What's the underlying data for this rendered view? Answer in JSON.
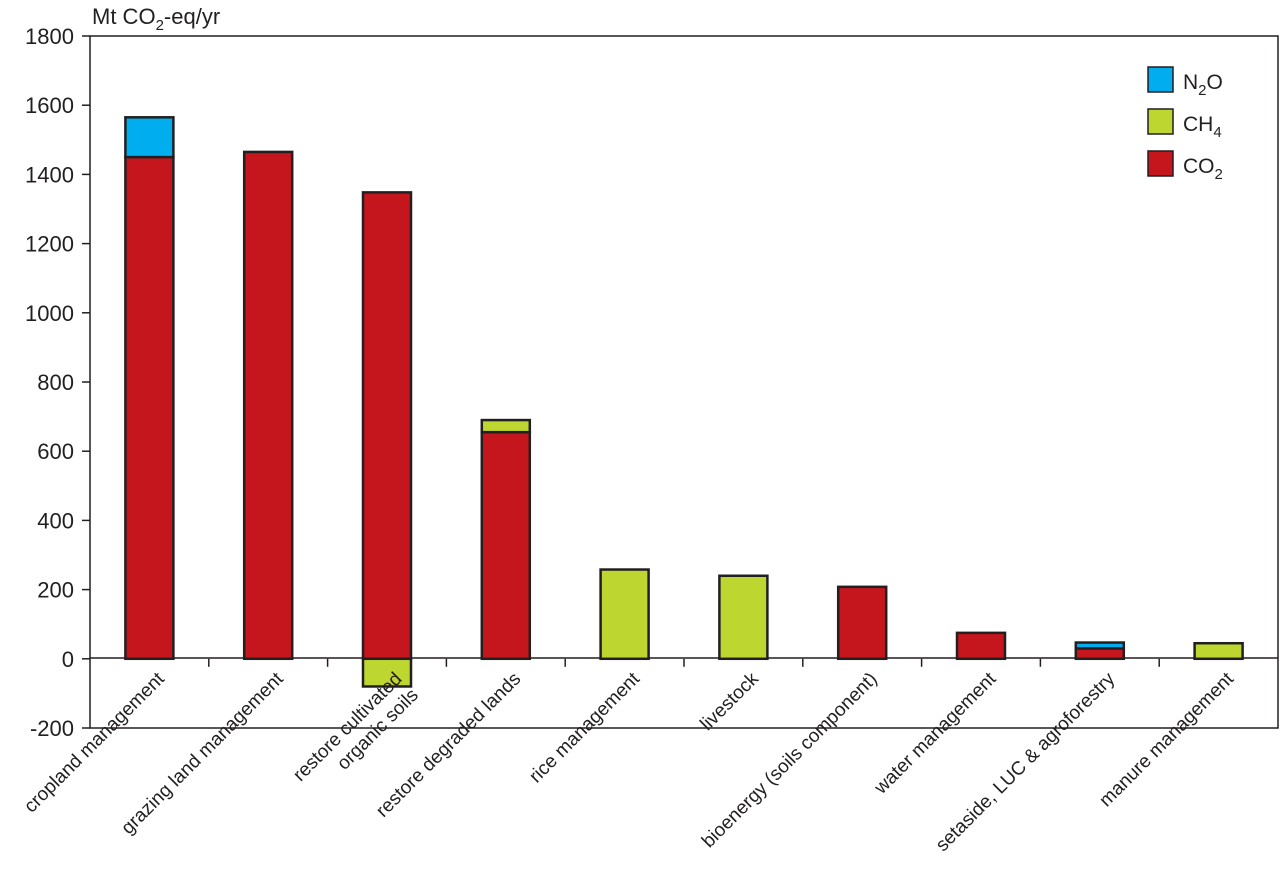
{
  "chart_data": {
    "type": "bar",
    "stacked": true,
    "ylabel": {
      "base": "Mt CO",
      "sub": "2",
      "rest": "-eq/yr"
    },
    "ylim": [
      -200,
      1800
    ],
    "yticks": [
      "-200",
      "0",
      "200",
      "400",
      "600",
      "800",
      "1000",
      "1200",
      "1400",
      "1600",
      "1800"
    ],
    "grid": false,
    "legend_position": "top-right",
    "categories": [
      [
        "cropland management"
      ],
      [
        "grazing land management"
      ],
      [
        "restore cultivated",
        "organic soils"
      ],
      [
        "restore degraded lands"
      ],
      [
        "rice management"
      ],
      [
        "livestock"
      ],
      [
        "bioenergy (soils component)"
      ],
      [
        "water management"
      ],
      [
        "setaside, LUC & agroforestry"
      ],
      [
        "manure management"
      ]
    ],
    "series": [
      {
        "name": {
          "base": "CO",
          "sub": "2"
        },
        "color": "#c4161c",
        "values": [
          1450,
          1465,
          1348,
          655,
          0,
          0,
          208,
          75,
          30,
          0
        ]
      },
      {
        "name": {
          "base": "CH",
          "sub": "4"
        },
        "color": "#bed630",
        "values": [
          0,
          0,
          -80,
          35,
          258,
          240,
          0,
          0,
          0,
          45
        ]
      },
      {
        "name": {
          "base": "N",
          "sub": "2",
          "rest": "O"
        },
        "color": "#00aeef",
        "values": [
          115,
          0,
          0,
          0,
          0,
          0,
          0,
          0,
          17,
          0
        ]
      }
    ],
    "legend_order": [
      2,
      1,
      0
    ]
  }
}
